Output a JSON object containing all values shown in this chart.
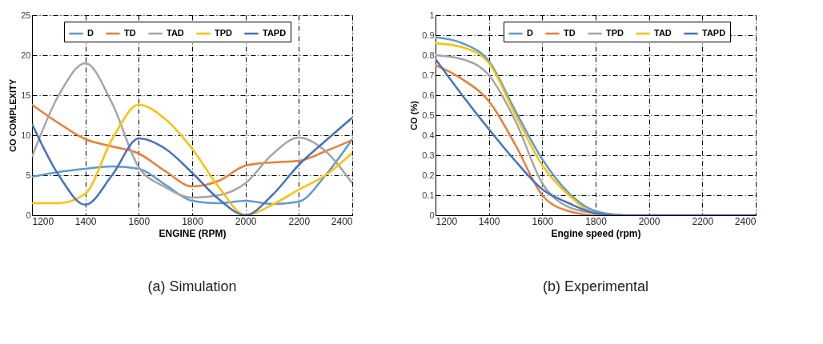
{
  "chart_data": [
    {
      "type": "line",
      "xlabel": "ENGINE (RPM)",
      "ylabel": "CO COMPLEXITY",
      "annotations": [
        "(a) Simulation"
      ],
      "x": [
        1200,
        1300,
        1400,
        1500,
        1600,
        1700,
        1800,
        1900,
        2000,
        2100,
        2200,
        2300,
        2400
      ],
      "series": [
        {
          "name": "D",
          "color": "#5b9bd5",
          "values": [
            4.8,
            5.4,
            5.8,
            6.1,
            5.8,
            3.8,
            1.8,
            1.5,
            1.8,
            1.4,
            1.7,
            5.0,
            9.5
          ]
        },
        {
          "name": "TD",
          "color": "#ed7d31",
          "values": [
            13.8,
            11.5,
            9.5,
            8.6,
            7.7,
            5.5,
            3.6,
            4.3,
            6.2,
            6.6,
            6.8,
            8.0,
            9.4
          ]
        },
        {
          "name": "TAD",
          "color": "#a5a5a5",
          "values": [
            7.3,
            15.0,
            19.0,
            14.0,
            6.0,
            3.5,
            2.2,
            2.5,
            4.0,
            7.6,
            9.7,
            8.0,
            4.0
          ]
        },
        {
          "name": "TPD",
          "color": "#ffc000",
          "values": [
            1.5,
            1.5,
            2.7,
            9.5,
            13.8,
            12.0,
            8.3,
            3.5,
            0.0,
            1.3,
            3.2,
            5.0,
            7.8
          ]
        },
        {
          "name": "TAPD",
          "color": "#4472c4",
          "values": [
            11.4,
            5.0,
            1.3,
            5.0,
            9.6,
            8.3,
            5.3,
            2.0,
            0.0,
            2.5,
            6.3,
            9.3,
            12.2
          ]
        }
      ],
      "xlim": [
        1200,
        2400
      ],
      "xticks": [
        1200,
        1400,
        1600,
        1800,
        2000,
        2200,
        2400
      ],
      "ylim": [
        0,
        25
      ],
      "yticks": [
        0,
        5,
        10,
        15,
        20,
        25
      ],
      "grid": true,
      "legend": "top",
      "marker": "none",
      "line_style": "solid"
    },
    {
      "type": "line",
      "xlabel": "Engine speed (rpm)",
      "ylabel": "CO (%)",
      "annotations": [
        "(b) Experimental"
      ],
      "x": [
        1200,
        1300,
        1400,
        1500,
        1600,
        1700,
        1800,
        1900,
        2000,
        2100,
        2200,
        2300,
        2400
      ],
      "series": [
        {
          "name": "D",
          "color": "#5b9bd5",
          "values": [
            0.89,
            0.86,
            0.77,
            0.52,
            0.28,
            0.11,
            0.02,
            0,
            null,
            null,
            null,
            null,
            null
          ]
        },
        {
          "name": "TD",
          "color": "#ed7d31",
          "values": [
            0.75,
            0.68,
            0.57,
            0.35,
            0.1,
            0.02,
            0,
            0,
            null,
            null,
            null,
            null,
            null
          ]
        },
        {
          "name": "TPD",
          "color": "#a5a5a5",
          "values": [
            0.8,
            0.78,
            0.7,
            0.47,
            0.16,
            0.04,
            0.01,
            0,
            null,
            null,
            null,
            null,
            null
          ]
        },
        {
          "name": "TAD",
          "color": "#ffc000",
          "values": [
            0.86,
            0.84,
            0.76,
            0.5,
            0.25,
            0.1,
            0.01,
            0,
            null,
            null,
            null,
            null,
            null
          ]
        },
        {
          "name": "TAPD",
          "color": "#4472c4",
          "values": [
            0.78,
            0.6,
            0.43,
            0.27,
            0.13,
            0.06,
            0.01,
            0,
            0,
            0,
            0,
            0,
            0
          ]
        }
      ],
      "xlim": [
        1200,
        2400
      ],
      "xticks": [
        1200,
        1400,
        1600,
        1800,
        2000,
        2200,
        2400
      ],
      "ylim": [
        0,
        1
      ],
      "yticks": [
        0,
        0.1,
        0.2,
        0.3,
        0.4,
        0.5,
        0.6,
        0.7,
        0.8,
        0.9,
        1
      ],
      "grid": true,
      "legend": "top right",
      "marker": "none",
      "line_style": "solid"
    }
  ]
}
